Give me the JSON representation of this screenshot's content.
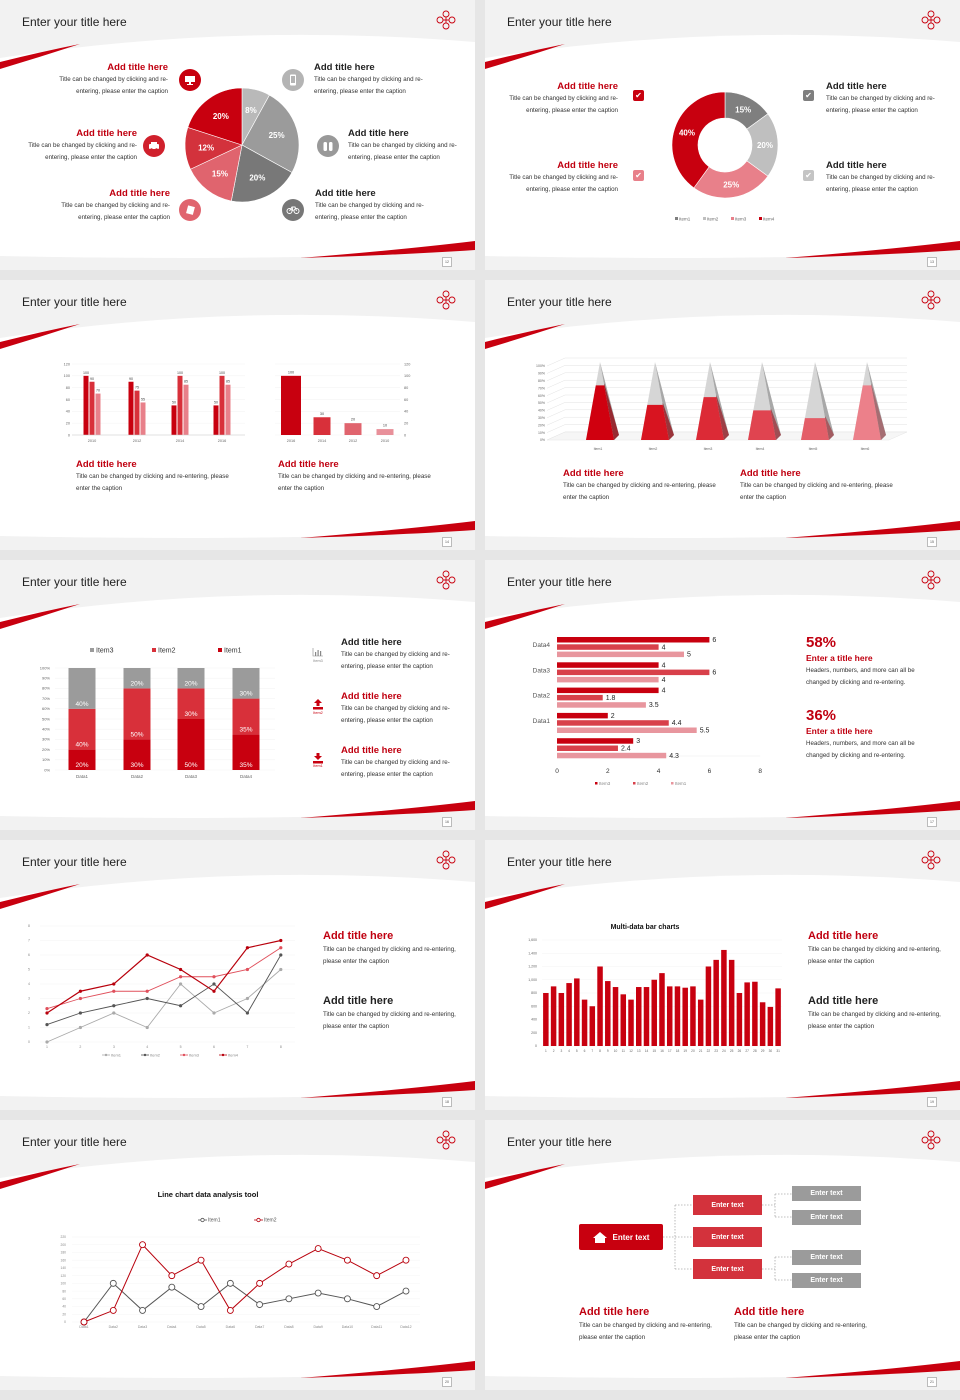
{
  "common": {
    "slide_title": "Enter your title here",
    "add_title": "Add title here",
    "caption": "Title can be changed by clicking and re-entering, please enter the caption",
    "enter_text": "Enter text"
  },
  "pages": [
    "12",
    "13",
    "14",
    "15",
    "16",
    "17",
    "18",
    "19",
    "20",
    "21"
  ],
  "colors": {
    "brand_red": "#c8000f",
    "gray": "#9b9b9b",
    "background": "#f2f2f2"
  },
  "slide5": {
    "icon_labels": [
      "Item3",
      "Item2",
      "Item1"
    ]
  },
  "slide6": {
    "stat1": {
      "value": "58%",
      "title": "Enter a title here",
      "caption": "Headers, numbers, and more can all be changed by clicking and re-entering."
    },
    "stat2": {
      "value": "36%",
      "title": "Enter a title here",
      "caption": "Headers, numbers, and more can all be changed by clicking and re-entering."
    }
  },
  "icons": {
    "slide1": [
      "monitor-icon",
      "car-icon",
      "book-icon",
      "phone-icon",
      "binoculars-icon",
      "bicycle-icon"
    ],
    "slide2": [
      "checkbox-icon",
      "checkbox-icon",
      "checkbox-icon",
      "checkbox-icon"
    ],
    "slide5": [
      "bar-chart-icon",
      "upload-icon",
      "download-icon"
    ],
    "slide10": [
      "home-icon"
    ]
  },
  "chart_data": [
    {
      "type": "pie",
      "values": [
        8,
        25,
        20,
        15,
        12,
        20
      ],
      "labels": [
        "8%",
        "25%",
        "20%",
        "15%",
        "12%",
        "20%"
      ],
      "colors": [
        "#b9b9b9",
        "#9b9b9b",
        "#787878",
        "#e0646e",
        "#d3323c",
        "#c8000f"
      ]
    },
    {
      "type": "pie",
      "donut": true,
      "values": [
        15,
        20,
        25,
        40
      ],
      "labels": [
        "15%",
        "20%",
        "25%",
        "40%"
      ],
      "series": [
        {
          "name": "Item1",
          "color": "#7f7f7f"
        },
        {
          "name": "Item2",
          "color": "#bfbfbf"
        },
        {
          "name": "Item3",
          "color": "#e8808a"
        },
        {
          "name": "Item4",
          "color": "#c8000f"
        }
      ],
      "legend": "bottom"
    },
    {
      "type": "bar",
      "categories": [
        "2010",
        "2012",
        "2014",
        "2016"
      ],
      "series": [
        {
          "values": [
            100,
            90,
            50,
            50
          ],
          "color": "#c8000f"
        },
        {
          "values": [
            90,
            75,
            100,
            100
          ],
          "color": "#d8303a"
        },
        {
          "values": [
            70,
            55,
            85,
            85
          ],
          "color": "#e8808a"
        }
      ],
      "ylim": [
        0,
        120
      ],
      "yticks": [
        "0",
        "20",
        "40",
        "60",
        "80",
        "100",
        "120"
      ],
      "grid": true
    },
    {
      "type": "bar",
      "categories": [
        "2016",
        "2014",
        "2012",
        "2010"
      ],
      "values": [
        100,
        30,
        20,
        10
      ],
      "colors": [
        "#c8000f",
        "#d8303a",
        "#e0646e",
        "#e8909a"
      ],
      "ylim": [
        0,
        120
      ],
      "yticks": [
        "0",
        "20",
        "40",
        "60",
        "80",
        "100",
        "120"
      ],
      "yaxis": "right",
      "grid": true
    },
    {
      "type": "bar",
      "style": "3d-pyramid",
      "categories": [
        "Item1",
        "Item2",
        "Item3",
        "Item4",
        "Item5",
        "Item6"
      ],
      "values": [
        70,
        45,
        55,
        38,
        28,
        70
      ],
      "colors": [
        "#d0000f",
        "#d81420",
        "#dc2a36",
        "#e04450",
        "#e45e68",
        "#ec808a"
      ],
      "ylim": [
        0,
        100
      ],
      "yticks": [
        "0%",
        "10%",
        "20%",
        "30%",
        "40%",
        "50%",
        "60%",
        "70%",
        "80%",
        "90%",
        "100%"
      ],
      "grid": true
    },
    {
      "type": "bar",
      "stacked": true,
      "categories": [
        "Data1",
        "Data2",
        "Data3",
        "Data4"
      ],
      "series": [
        {
          "name": "Item1",
          "values": [
            20,
            30,
            50,
            35
          ],
          "color": "#c8000f"
        },
        {
          "name": "Item2",
          "values": [
            40,
            50,
            30,
            35
          ],
          "color": "#d8303a"
        },
        {
          "name": "Item3",
          "values": [
            40,
            20,
            20,
            30
          ],
          "color": "#9b9b9b"
        }
      ],
      "legend_order": [
        "Item3",
        "Item2",
        "Item1"
      ],
      "ylim": [
        0,
        100
      ],
      "yticks": [
        "0%",
        "10%",
        "20%",
        "30%",
        "40%",
        "50%",
        "60%",
        "70%",
        "80%",
        "90%",
        "100%"
      ],
      "legend": "top",
      "grid": true
    },
    {
      "type": "bar",
      "orientation": "horizontal",
      "categories": [
        "Data4",
        "Data3",
        "Data2",
        "Data1",
        ""
      ],
      "series": [
        {
          "name": "Item3",
          "values": [
            6,
            4,
            4,
            2,
            3
          ],
          "color": "#c8000f"
        },
        {
          "name": "Item2",
          "values": [
            4,
            6,
            1.8,
            4.4,
            2.4
          ],
          "color": "#d8404a"
        },
        {
          "name": "Item1",
          "values": [
            5,
            4,
            3.5,
            5.5,
            4.3
          ],
          "color": "#e8969e"
        }
      ],
      "xlim": [
        0,
        8
      ],
      "xticks": [
        "0",
        "2",
        "4",
        "6",
        "8"
      ],
      "legend": "bottom"
    },
    {
      "type": "line",
      "x": [
        "1",
        "2",
        "3",
        "4",
        "5",
        "6",
        "7",
        "8"
      ],
      "series": [
        {
          "name": "Item1",
          "values": [
            0,
            1,
            2,
            1,
            4,
            2,
            3,
            5
          ],
          "color": "#aaaaaa"
        },
        {
          "name": "Item2",
          "values": [
            1.2,
            2,
            2.5,
            3,
            2.5,
            4,
            2,
            6
          ],
          "color": "#555555"
        },
        {
          "name": "Item3",
          "values": [
            2.3,
            3,
            3.5,
            3.5,
            4.5,
            4.5,
            5,
            6.5
          ],
          "color": "#e0505c"
        },
        {
          "name": "Item4",
          "values": [
            2,
            3.5,
            4,
            6,
            5,
            3.5,
            6.5,
            7
          ],
          "color": "#b8000c"
        }
      ],
      "ylim": [
        0,
        8
      ],
      "yticks": [
        "0",
        "1",
        "2",
        "3",
        "4",
        "5",
        "6",
        "7",
        "8"
      ],
      "legend": "bottom",
      "grid": true
    },
    {
      "type": "bar",
      "title": "Multi-data bar charts",
      "categories": [
        "1",
        "2",
        "3",
        "4",
        "5",
        "6",
        "7",
        "8",
        "9",
        "10",
        "11",
        "12",
        "13",
        "14",
        "15",
        "16",
        "17",
        "18",
        "19",
        "20",
        "21",
        "22",
        "23",
        "24",
        "25",
        "26",
        "27",
        "28",
        "29",
        "30",
        "31"
      ],
      "values": [
        800,
        900,
        800,
        950,
        1020,
        700,
        600,
        1200,
        980,
        890,
        780,
        700,
        890,
        890,
        1000,
        1100,
        900,
        900,
        880,
        900,
        700,
        1200,
        1300,
        1450,
        1300,
        800,
        960,
        970,
        660,
        590,
        870
      ],
      "color": "#c8000f",
      "ylim": [
        0,
        1600
      ],
      "yticks": [
        "0",
        "200",
        "400",
        "600",
        "800",
        "1,000",
        "1,200",
        "1,400",
        "1,600"
      ],
      "grid": true
    },
    {
      "type": "line",
      "title": "Line chart data analysis tool",
      "x": [
        "Data1",
        "Data2",
        "Data3",
        "Data4",
        "Data5",
        "Data6",
        "Data7",
        "Data8",
        "Data9",
        "Data10",
        "Data11",
        "Data12"
      ],
      "series": [
        {
          "name": "Item1",
          "values": [
            0,
            100,
            30,
            90,
            40,
            100,
            45,
            60,
            75,
            60,
            40,
            80
          ],
          "color": "#555555"
        },
        {
          "name": "Item2",
          "values": [
            0,
            30,
            200,
            120,
            160,
            30,
            100,
            150,
            190,
            160,
            120,
            160
          ],
          "color": "#b8000c"
        }
      ],
      "ylim": [
        0,
        220
      ],
      "yticks": [
        "0",
        "20",
        "40",
        "60",
        "80",
        "100",
        "120",
        "140",
        "160",
        "180",
        "200",
        "220"
      ],
      "legend": "top",
      "grid": true
    }
  ]
}
